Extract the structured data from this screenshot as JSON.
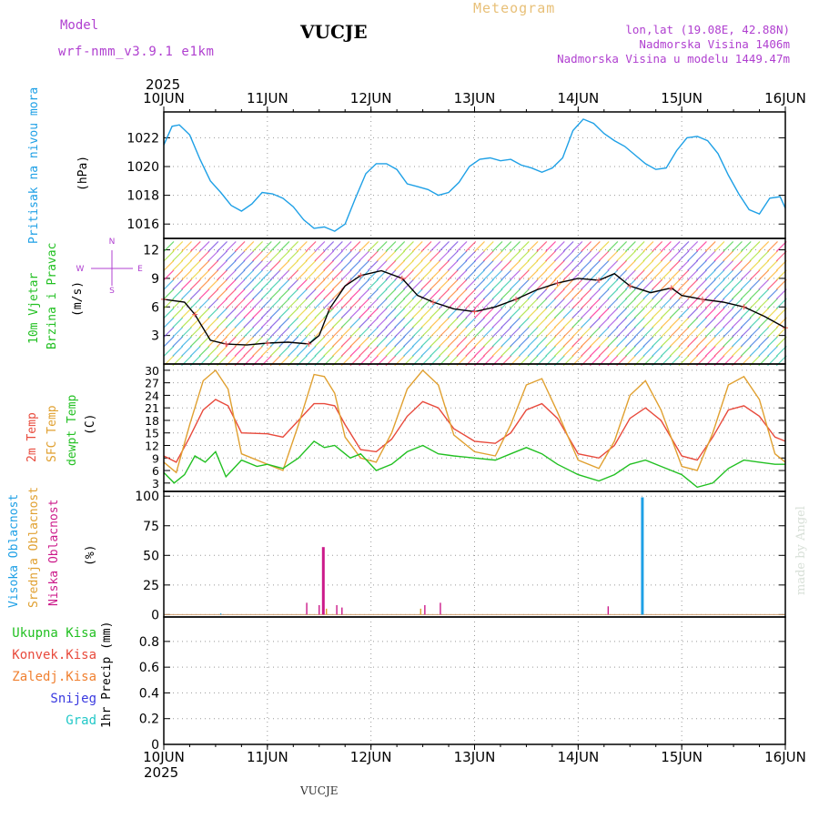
{
  "header": {
    "model_label": "Model",
    "model_name": "wrf-nmm_v3.9.1 e1km",
    "station": "VUCJE",
    "title": "Meteogram",
    "lonlat": "lon,lat (19.08E, 42.88N)",
    "altitude": "Nadmorska Visina 1406m",
    "model_altitude": "Nadmorska Visina u modelu 1449.47m"
  },
  "footer": {
    "station": "VUCJE",
    "credit": "made by Angel"
  },
  "colors": {
    "pressure": "#1ea0e6",
    "temp2m": "#e84a3c",
    "sfc": "#e0a030",
    "dewpt": "#22c022",
    "high_cloud": "#1ea0e6",
    "mid_cloud": "#e0a030",
    "low_cloud": "#cc1a8a",
    "wind_label": "#22c022",
    "compass": "#b040d0",
    "gust_marker": "#f05050"
  },
  "time_axis": {
    "top_year": "2025",
    "bottom_year": "2025",
    "days": [
      "10JUN",
      "11JUN",
      "12JUN",
      "13JUN",
      "14JUN",
      "15JUN",
      "16JUN"
    ]
  },
  "panels": {
    "pressure": {
      "label": "Pritisak na nivou mora",
      "unit": "(hPa)",
      "ticks": [
        "1016",
        "1018",
        "1020",
        "1022"
      ]
    },
    "wind": {
      "label1": "10m Vjetar",
      "label2": "Brzina i Pravac",
      "unit": "(m/s)",
      "ticks": [
        "3",
        "6",
        "9",
        "12"
      ],
      "compass": {
        "n": "N",
        "s": "S",
        "w": "W",
        "e": "E"
      }
    },
    "temp": {
      "label1": "2m Temp",
      "label2": "SFC Temp",
      "label3": "dewpt Temp",
      "unit": "(C)",
      "ticks": [
        "3",
        "6",
        "9",
        "12",
        "15",
        "18",
        "21",
        "24",
        "27",
        "30"
      ]
    },
    "cloud": {
      "label1": "Visoka Oblacnost",
      "label2": "Srednja Oblacnost",
      "label3": "Niska Oblacnost",
      "unit": "(%)",
      "ticks": [
        "0",
        "25",
        "50",
        "75",
        "100"
      ]
    },
    "precip": {
      "legend": [
        {
          "text": "Ukupna Kisa",
          "color": "#22c022"
        },
        {
          "text": "Konvek.Kisa",
          "color": "#e84a3c"
        },
        {
          "text": "Zaledj.Kisa",
          "color": "#f08030"
        },
        {
          "text": "Snijeg",
          "color": "#3a3ae0"
        },
        {
          "text": "Grad",
          "color": "#22c8c8"
        }
      ],
      "unit": "1hr Precip (mm)",
      "ticks": [
        "0",
        "0.2",
        "0.4",
        "0.6",
        "0.8"
      ]
    }
  },
  "chart_data": [
    {
      "type": "line",
      "x_unit": "days since 10JUN 00Z",
      "xlim": [
        0,
        6
      ],
      "ylim": [
        1015,
        1023.8
      ],
      "series": [
        {
          "name": "Pritisak na nivou mora",
          "color": "#1ea0e6",
          "x": [
            0,
            0.08,
            0.15,
            0.25,
            0.35,
            0.45,
            0.55,
            0.65,
            0.75,
            0.85,
            0.95,
            1.05,
            1.15,
            1.25,
            1.35,
            1.45,
            1.55,
            1.65,
            1.75,
            1.85,
            1.95,
            2.05,
            2.15,
            2.25,
            2.35,
            2.45,
            2.55,
            2.65,
            2.75,
            2.85,
            2.95,
            3.05,
            3.15,
            3.25,
            3.35,
            3.45,
            3.55,
            3.65,
            3.75,
            3.85,
            3.95,
            4.05,
            4.15,
            4.25,
            4.35,
            4.45,
            4.55,
            4.65,
            4.75,
            4.85,
            4.95,
            5.05,
            5.15,
            5.25,
            5.35,
            5.45,
            5.55,
            5.65,
            5.75,
            5.85,
            5.95,
            6.0
          ],
          "y": [
            1021.5,
            1022.8,
            1022.9,
            1022.2,
            1020.5,
            1019.0,
            1018.2,
            1017.3,
            1016.9,
            1017.4,
            1018.2,
            1018.1,
            1017.8,
            1017.2,
            1016.3,
            1015.7,
            1015.8,
            1015.5,
            1016.0,
            1017.8,
            1019.5,
            1020.2,
            1020.2,
            1019.8,
            1018.8,
            1018.6,
            1018.4,
            1018.0,
            1018.2,
            1018.9,
            1020.0,
            1020.5,
            1020.6,
            1020.4,
            1020.5,
            1020.1,
            1019.9,
            1019.6,
            1019.9,
            1020.6,
            1022.5,
            1023.3,
            1023.0,
            1022.3,
            1021.8,
            1021.4,
            1020.8,
            1020.2,
            1019.8,
            1019.9,
            1021.1,
            1022.0,
            1022.1,
            1021.8,
            1020.9,
            1019.4,
            1018.1,
            1017.0,
            1016.7,
            1017.8,
            1017.9,
            1017.1
          ]
        }
      ]
    },
    {
      "type": "line",
      "x_unit": "days since 10JUN 00Z",
      "xlim": [
        0,
        6
      ],
      "ylim": [
        0,
        13.2
      ],
      "series": [
        {
          "name": "10m Vjetar",
          "color": "#000000",
          "x": [
            0,
            0.2,
            0.3,
            0.45,
            0.6,
            0.8,
            1.0,
            1.2,
            1.4,
            1.5,
            1.6,
            1.75,
            1.9,
            2.1,
            2.3,
            2.45,
            2.6,
            2.8,
            3.0,
            3.2,
            3.4,
            3.6,
            3.8,
            4.0,
            4.2,
            4.35,
            4.5,
            4.7,
            4.9,
            5.0,
            5.2,
            5.4,
            5.6,
            5.8,
            6.0
          ],
          "y": [
            6.8,
            6.5,
            5.2,
            2.5,
            2.1,
            2.0,
            2.2,
            2.3,
            2.1,
            3.0,
            5.8,
            8.2,
            9.3,
            9.8,
            9.0,
            7.2,
            6.5,
            5.8,
            5.5,
            6.0,
            6.8,
            7.8,
            8.5,
            9.0,
            8.8,
            9.5,
            8.2,
            7.5,
            8.0,
            7.2,
            6.8,
            6.5,
            6.0,
            5.0,
            3.8
          ]
        }
      ]
    },
    {
      "type": "line",
      "x_unit": "days since 10JUN 00Z",
      "xlim": [
        0,
        6
      ],
      "ylim": [
        1,
        31.5
      ],
      "series": [
        {
          "name": "2m Temp",
          "color": "#e84a3c",
          "x": [
            0,
            0.12,
            0.25,
            0.38,
            0.5,
            0.62,
            0.75,
            1.0,
            1.15,
            1.3,
            1.45,
            1.55,
            1.65,
            1.75,
            1.9,
            2.05,
            2.2,
            2.35,
            2.5,
            2.65,
            2.8,
            3.0,
            3.2,
            3.35,
            3.5,
            3.65,
            3.8,
            4.0,
            4.2,
            4.35,
            4.5,
            4.65,
            4.8,
            5.0,
            5.15,
            5.3,
            5.45,
            5.6,
            5.75,
            5.9,
            6.0
          ],
          "y": [
            9.5,
            8.0,
            14.0,
            20.5,
            23.0,
            21.5,
            15.0,
            14.8,
            14.0,
            18.0,
            22.0,
            22.0,
            21.5,
            17.0,
            11.0,
            10.5,
            13.5,
            19.0,
            22.5,
            21.0,
            16.0,
            13.0,
            12.5,
            15.0,
            20.5,
            22.0,
            18.5,
            10.0,
            9.0,
            12.0,
            18.5,
            21.0,
            18.0,
            9.5,
            8.5,
            14.0,
            20.5,
            21.5,
            19.0,
            14.0,
            13.0
          ]
        },
        {
          "name": "SFC Temp",
          "color": "#e0a030",
          "x": [
            0,
            0.12,
            0.25,
            0.38,
            0.5,
            0.62,
            0.75,
            1.0,
            1.15,
            1.3,
            1.45,
            1.55,
            1.65,
            1.75,
            1.9,
            2.05,
            2.2,
            2.35,
            2.5,
            2.65,
            2.8,
            3.0,
            3.2,
            3.35,
            3.5,
            3.65,
            3.8,
            4.0,
            4.2,
            4.35,
            4.5,
            4.65,
            4.8,
            5.0,
            5.15,
            5.3,
            5.45,
            5.6,
            5.75,
            5.9,
            6.0
          ],
          "y": [
            8.0,
            5.5,
            17.0,
            27.5,
            30.0,
            25.5,
            10.0,
            7.5,
            6.0,
            17.0,
            29.0,
            28.5,
            24.5,
            14.0,
            9.0,
            8.0,
            15.0,
            25.5,
            30.0,
            26.5,
            14.5,
            10.5,
            9.5,
            17.0,
            26.5,
            28.0,
            20.0,
            8.5,
            6.5,
            13.0,
            24.0,
            27.5,
            20.5,
            7.0,
            6.0,
            15.0,
            26.5,
            28.5,
            23.0,
            10.0,
            8.0
          ]
        },
        {
          "name": "dewpt Temp",
          "color": "#22c022",
          "x": [
            0,
            0.1,
            0.2,
            0.3,
            0.4,
            0.5,
            0.6,
            0.75,
            0.9,
            1.0,
            1.15,
            1.3,
            1.45,
            1.55,
            1.65,
            1.8,
            1.9,
            2.05,
            2.2,
            2.35,
            2.5,
            2.65,
            2.8,
            3.0,
            3.2,
            3.35,
            3.5,
            3.65,
            3.8,
            4.0,
            4.2,
            4.35,
            4.5,
            4.65,
            4.8,
            5.0,
            5.15,
            5.3,
            5.45,
            5.6,
            5.75,
            5.9,
            6.0
          ],
          "y": [
            5.5,
            3.0,
            5.0,
            9.5,
            8.0,
            10.5,
            4.5,
            8.5,
            7.0,
            7.5,
            6.5,
            9.0,
            13.0,
            11.5,
            12.0,
            9.0,
            10.0,
            6.0,
            7.5,
            10.5,
            12.0,
            10.0,
            9.5,
            9.0,
            8.5,
            10.0,
            11.5,
            10.0,
            7.5,
            5.0,
            3.5,
            5.0,
            7.5,
            8.5,
            7.0,
            5.0,
            2.0,
            3.0,
            6.5,
            8.5,
            8.0,
            7.5,
            7.5
          ]
        }
      ]
    },
    {
      "type": "bar",
      "x_unit": "days since 10JUN 00Z",
      "xlim": [
        0,
        6
      ],
      "ylim": [
        -2,
        104
      ],
      "series": [
        {
          "name": "Visoka Oblacnost",
          "color": "#1ea0e6",
          "x": [
            0.55,
            4.62
          ],
          "y": [
            1,
            99
          ]
        },
        {
          "name": "Srednja Oblacnost",
          "color": "#e0a030",
          "x": [
            1.57,
            2.48
          ],
          "y": [
            5,
            5
          ]
        },
        {
          "name": "Niska Oblacnost",
          "color": "#cc1a8a",
          "x": [
            1.38,
            1.5,
            1.54,
            1.67,
            1.72,
            2.52,
            2.67,
            4.29
          ],
          "y": [
            10,
            8,
            57,
            8,
            6,
            8,
            10,
            7
          ]
        }
      ]
    },
    {
      "type": "bar",
      "x_unit": "days since 10JUN 00Z",
      "xlim": [
        0,
        6
      ],
      "ylim": [
        0,
        0.99
      ],
      "series": [
        {
          "name": "Ukupna Kisa",
          "color": "#22c022",
          "x": [],
          "y": []
        }
      ]
    }
  ]
}
